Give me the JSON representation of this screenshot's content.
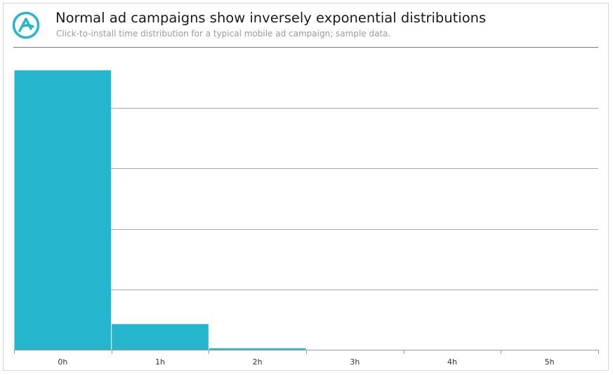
{
  "header": {
    "title": "Normal ad campaigns show inversely exponential distributions",
    "subtitle": "Click-to-install time distribution for a typical mobile ad campaign; sample data."
  },
  "colors": {
    "bar": "#25b5cc",
    "grid": "#a9a9a9",
    "axis": "#9a9a9a",
    "logo": "#25b5cc"
  },
  "logo_icon": "adjust-logo-icon",
  "chart_data": {
    "type": "bar",
    "categories": [
      "0h",
      "1h",
      "2h",
      "3h",
      "4h",
      "5h"
    ],
    "values": [
      92.5,
      8.5,
      0.5,
      0,
      0,
      0
    ],
    "ylim": [
      0,
      100
    ],
    "grid": true,
    "y_tick_labels_shown": false,
    "xlabel": "",
    "ylabel": ""
  }
}
